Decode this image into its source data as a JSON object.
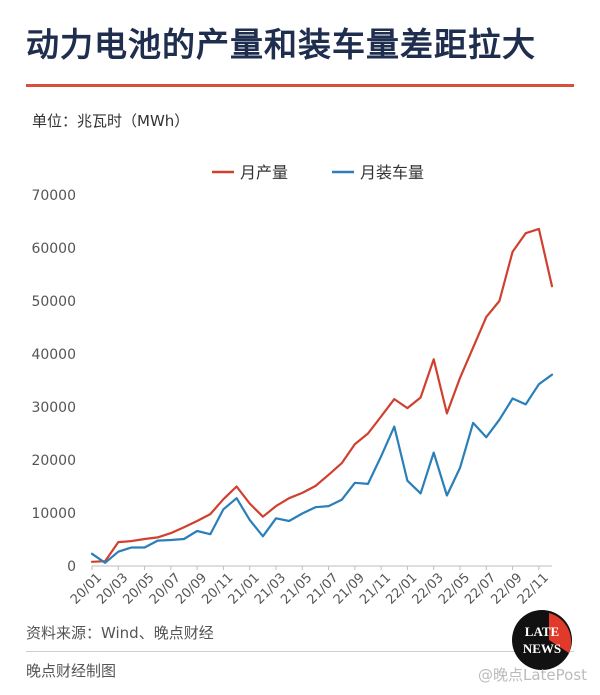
{
  "title": "动力电池的产量和装车量差距拉大",
  "unit_label": "单位：兆瓦时（MWh）",
  "source": "资料来源：Wind、晚点财经",
  "credit": "晚点财经制图",
  "watermark": "@晚点LatePost",
  "logo": {
    "line1": "LATE",
    "line2": "NEWS"
  },
  "colors": {
    "production": "#d0402f",
    "installation": "#2a7fb8",
    "accent_rule": "#d94f3c",
    "title": "#1f2d4e"
  },
  "chart_data": {
    "type": "line",
    "title": "",
    "xlabel": "",
    "ylabel": "",
    "ylim": [
      0,
      70000
    ],
    "yticks": [
      "0",
      "10000",
      "20000",
      "30000",
      "40000",
      "50000",
      "60000",
      "70000"
    ],
    "xticks": [
      "20/01",
      "20/03",
      "20/05",
      "20/07",
      "20/09",
      "20/11",
      "21/01",
      "21/03",
      "21/05",
      "21/07",
      "21/09",
      "21/11",
      "22/01",
      "22/03",
      "22/05",
      "22/07",
      "22/09",
      "22/11"
    ],
    "x": [
      "20/01",
      "20/02",
      "20/03",
      "20/04",
      "20/05",
      "20/06",
      "20/07",
      "20/08",
      "20/09",
      "20/10",
      "20/11",
      "20/12",
      "21/01",
      "21/02",
      "21/03",
      "21/04",
      "21/05",
      "21/06",
      "21/07",
      "21/08",
      "21/09",
      "21/10",
      "21/11",
      "21/12",
      "22/01",
      "22/02",
      "22/03",
      "22/04",
      "22/05",
      "22/06",
      "22/07",
      "22/08",
      "22/09",
      "22/10",
      "22/11",
      "22/12"
    ],
    "legend_position": "top",
    "grid": false,
    "series": [
      {
        "name": "月产量",
        "color": "#d0402f",
        "values": [
          800,
          900,
          4500,
          4700,
          5100,
          5400,
          6200,
          7300,
          8500,
          9800,
          12600,
          15000,
          11800,
          9300,
          11300,
          12800,
          13800,
          15100,
          17200,
          19400,
          23000,
          25000,
          28200,
          31500,
          29800,
          31800,
          39000,
          28800,
          35500,
          41200,
          47000,
          50000,
          59300,
          62800,
          63600,
          52800
        ]
      },
      {
        "name": "月装车量",
        "color": "#2a7fb8",
        "values": [
          2300,
          600,
          2700,
          3500,
          3500,
          4800,
          4900,
          5100,
          6600,
          6000,
          10700,
          12800,
          8700,
          5600,
          9000,
          8500,
          9900,
          11100,
          11300,
          12500,
          15700,
          15500,
          20700,
          26300,
          16100,
          13700,
          21400,
          13300,
          18500,
          27000,
          24300,
          27600,
          31600,
          30500,
          34300,
          36100
        ]
      }
    ]
  }
}
